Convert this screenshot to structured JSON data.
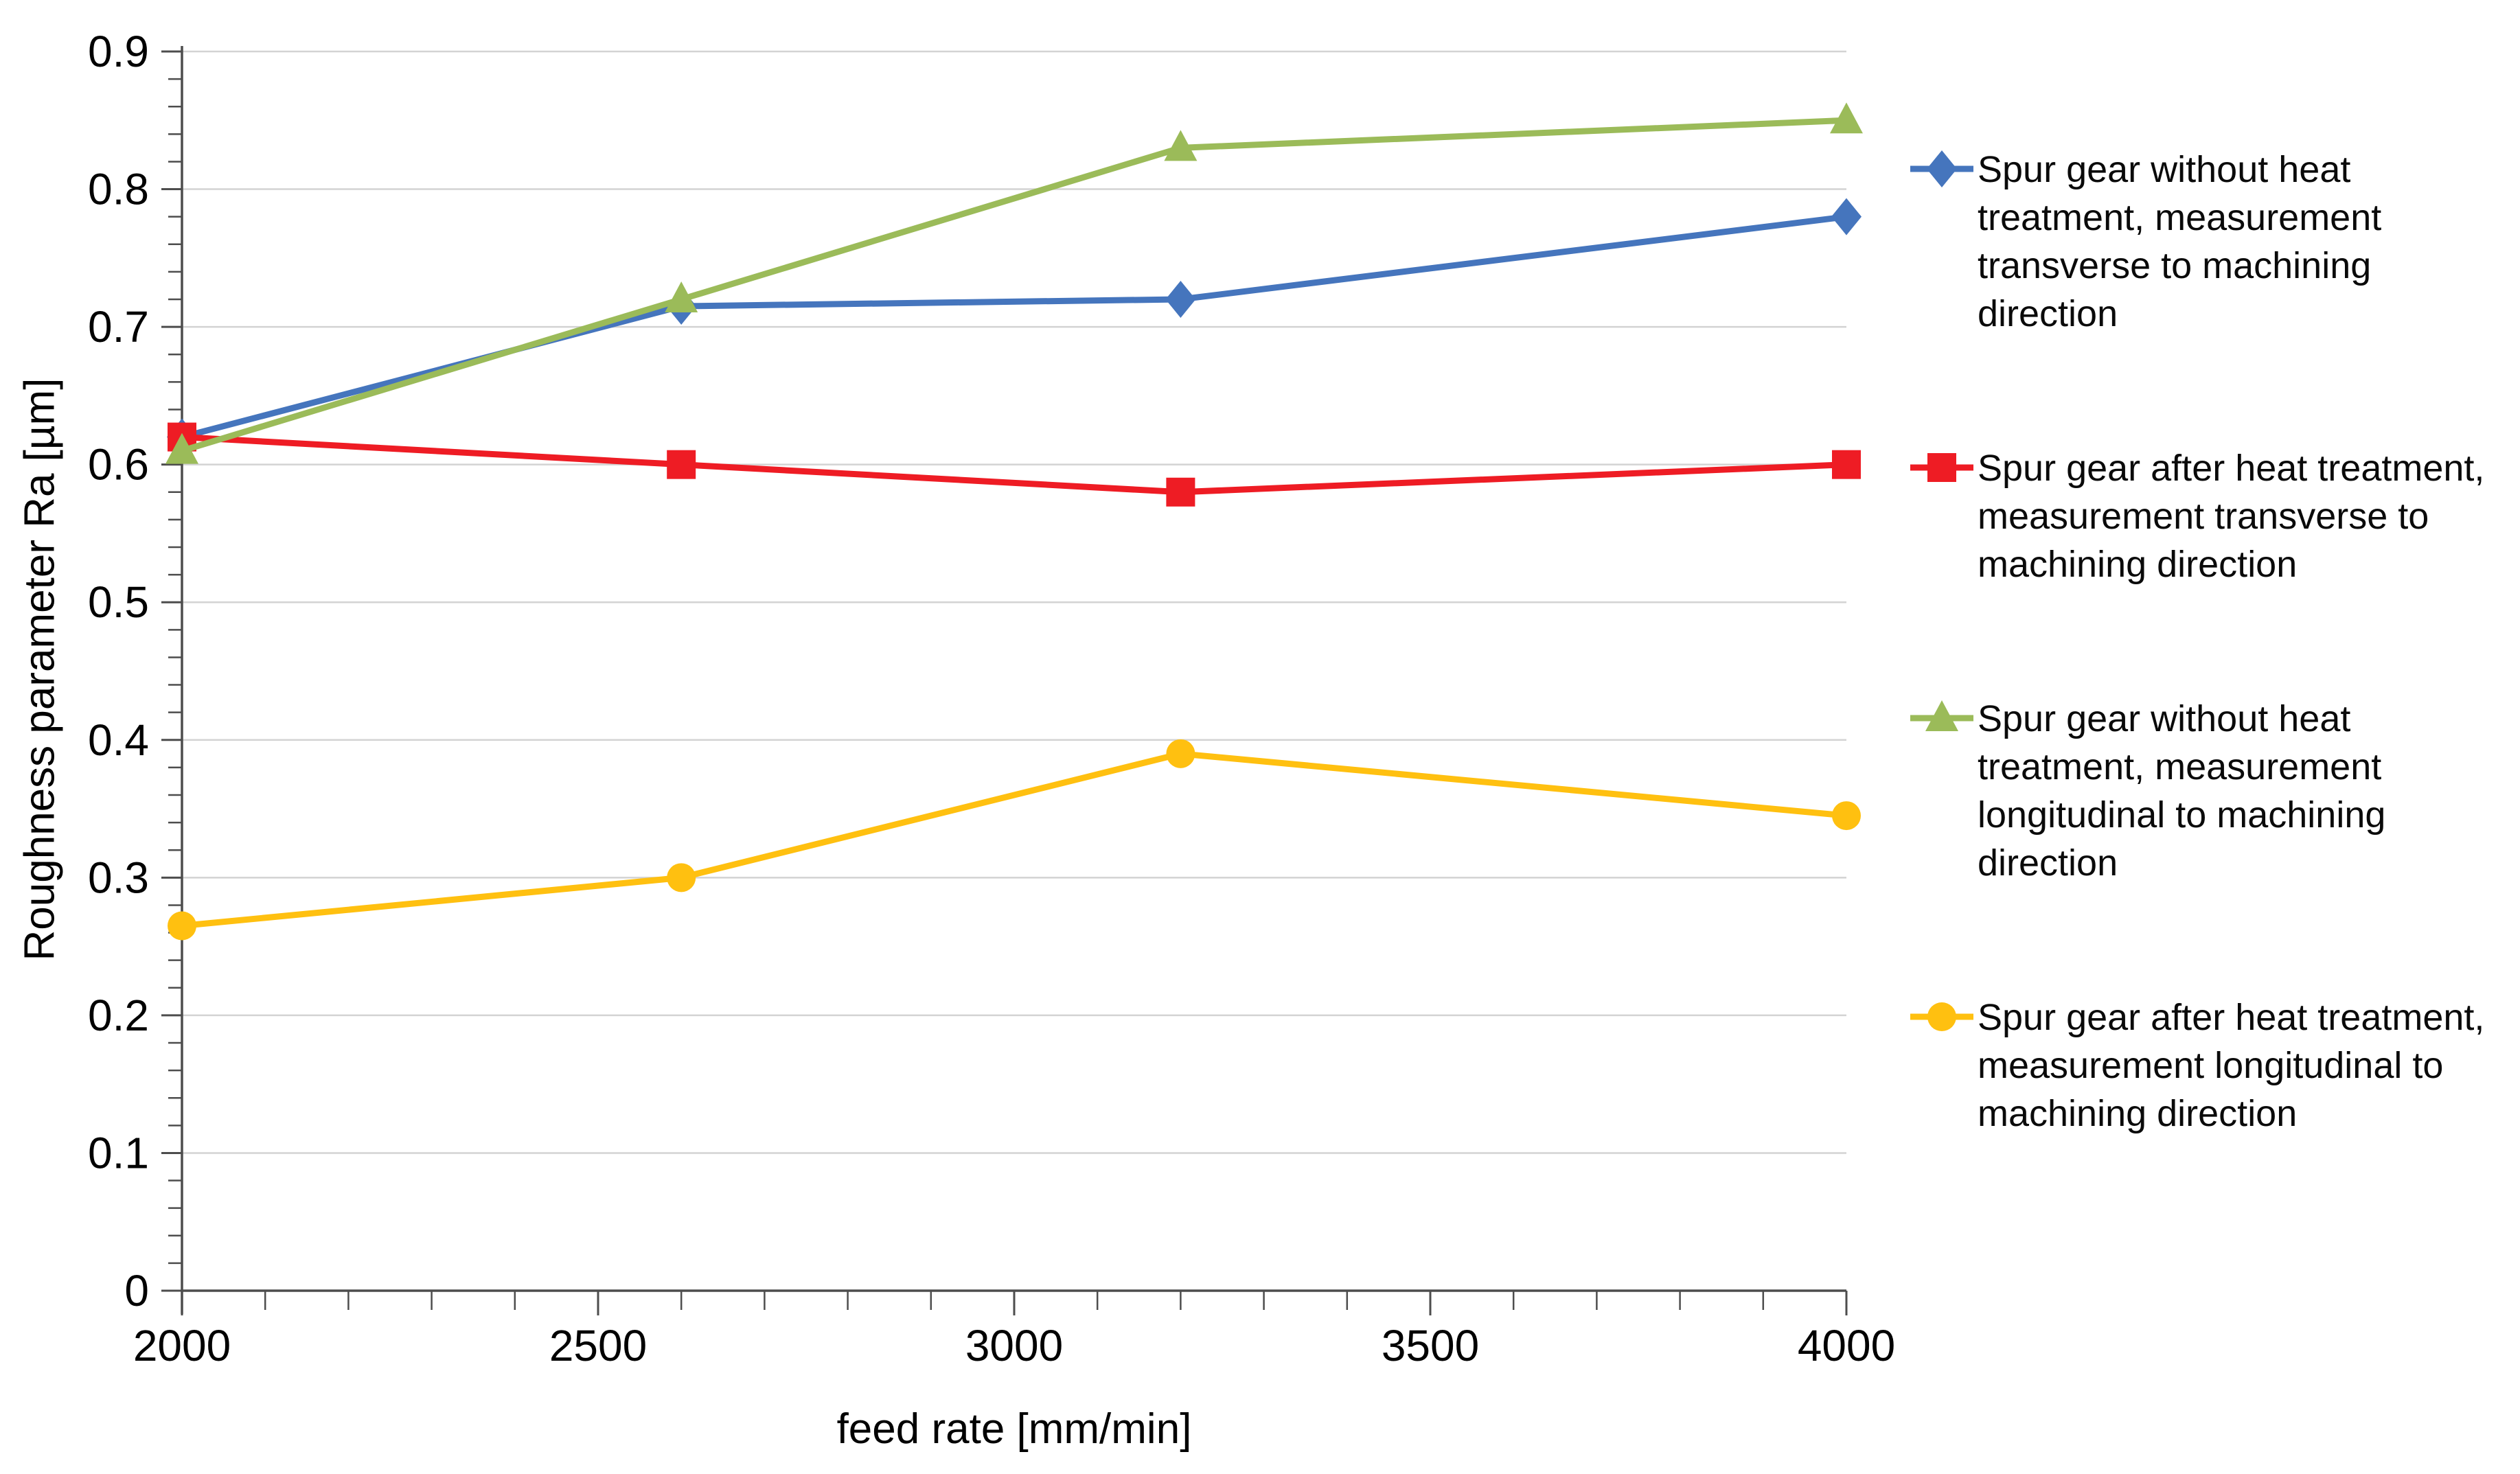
{
  "chart_data": {
    "type": "line",
    "title": "",
    "xlabel": "feed rate [mm/min]",
    "ylabel": "Roughness parameter Ra [µm]",
    "xlim": [
      2000,
      4000
    ],
    "ylim": [
      0,
      0.9
    ],
    "grid": "horizontal-major",
    "legend_position": "right",
    "x": [
      2000,
      2600,
      3200,
      4000
    ],
    "x_tick_values": [
      2000,
      2500,
      3000,
      3500,
      4000
    ],
    "x_tick_labels": [
      "2000",
      "2500",
      "3000",
      "3500",
      "4000"
    ],
    "x_minor_tick_step": 100,
    "y_tick_values": [
      0,
      0.1,
      0.2,
      0.3,
      0.4,
      0.5,
      0.6,
      0.7,
      0.8,
      0.9
    ],
    "y_tick_labels": [
      "0",
      "0.1",
      "0.2",
      "0.3",
      "0.4",
      "0.5",
      "0.6",
      "0.7",
      "0.8",
      "0.9"
    ],
    "y_minor_tick_step": 0.02,
    "colors": {
      "gridline": "#d3d3d3",
      "axis": "#4d4d4d",
      "text": "#000000"
    },
    "series": [
      {
        "id": "without-ht-transverse",
        "name": "Spur gear without heat treatment, measurement transverse to machining direction",
        "marker": "diamond",
        "color": "#4575bd",
        "values": [
          0.62,
          0.715,
          0.72,
          0.78
        ]
      },
      {
        "id": "after-ht-transverse",
        "name": "Spur gear after heat treatment, measurement transverse to machining direction",
        "marker": "square",
        "color": "#ee1c24",
        "values": [
          0.62,
          0.6,
          0.58,
          0.6
        ]
      },
      {
        "id": "without-ht-longitudinal",
        "name": "Spur gear without heat treatment, measurement longitudinal to machining direction",
        "marker": "triangle",
        "color": "#9bbb59",
        "values": [
          0.61,
          0.72,
          0.83,
          0.85
        ]
      },
      {
        "id": "after-ht-longitudinal",
        "name": "Spur gear after heat treatment, measurement longitudinal to machining direction",
        "marker": "circle",
        "color": "#ffc010",
        "values": [
          0.265,
          0.3,
          0.39,
          0.345
        ]
      }
    ]
  }
}
